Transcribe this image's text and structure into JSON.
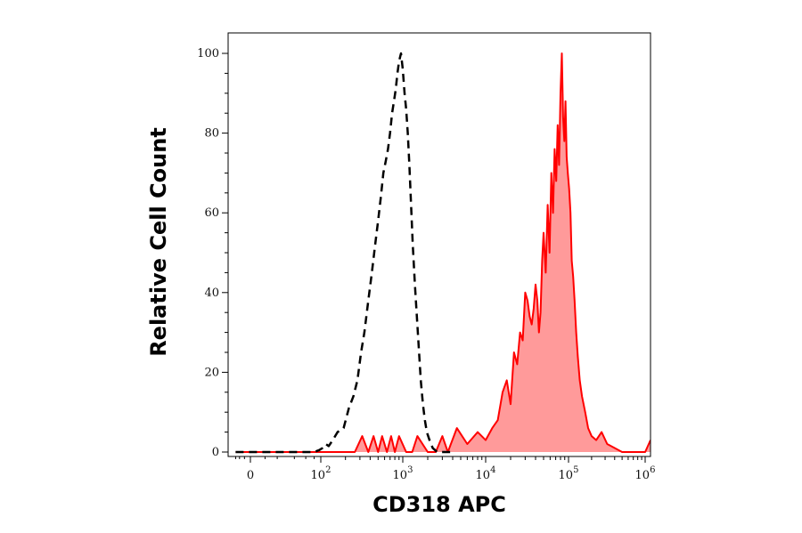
{
  "chart_data": {
    "type": "area",
    "title": "",
    "xlabel": "CD318 APC",
    "ylabel": "Relative Cell Count",
    "x_scale": "biexponential",
    "xlim": [
      -40,
      1100000
    ],
    "ylim": [
      0,
      100
    ],
    "grid": false,
    "legend": "none",
    "y_ticks": [
      {
        "value": 0,
        "label": "0"
      },
      {
        "value": 20,
        "label": "20"
      },
      {
        "value": 40,
        "label": "40"
      },
      {
        "value": 60,
        "label": "60"
      },
      {
        "value": 80,
        "label": "80"
      },
      {
        "value": 100,
        "label": "100"
      }
    ],
    "x_ticks": [
      {
        "value": 0,
        "base": "0",
        "exp": ""
      },
      {
        "value": 100,
        "base": "10",
        "exp": "2"
      },
      {
        "value": 1000,
        "base": "10",
        "exp": "3"
      },
      {
        "value": 10000,
        "base": "10",
        "exp": "4"
      },
      {
        "value": 100000,
        "base": "10",
        "exp": "5"
      },
      {
        "value": 1000000,
        "base": "10",
        "exp": "6"
      }
    ],
    "series": [
      {
        "style": "dashed",
        "color": "#000000",
        "x": [
          -30,
          0,
          30,
          60,
          80,
          95,
          105,
          115,
          125,
          140,
          160,
          190,
          220,
          250,
          280,
          310,
          340,
          380,
          420,
          460,
          500,
          540,
          580,
          620,
          660,
          700,
          740,
          780,
          820,
          860,
          900,
          950,
          1000,
          1050,
          1100,
          1150,
          1200,
          1260,
          1320,
          1400,
          1480,
          1560,
          1650,
          1750,
          1850,
          1950,
          2100,
          2300,
          2600,
          3000,
          4000
        ],
        "y": [
          0,
          0,
          0,
          0,
          0,
          0.5,
          1,
          2,
          1.5,
          3,
          5,
          6,
          11,
          14,
          18,
          25,
          30,
          38,
          45,
          52,
          58,
          64,
          70,
          73,
          76,
          80,
          85,
          88,
          91,
          95,
          98,
          100,
          96,
          90,
          86,
          80,
          72,
          62,
          52,
          42,
          34,
          26,
          18,
          12,
          8,
          5,
          3,
          1,
          0,
          0,
          0
        ]
      },
      {
        "style": "filled",
        "color": "#ff0000",
        "fill": "#ff9a9a",
        "x": [
          -30,
          100,
          200,
          260,
          320,
          380,
          440,
          500,
          560,
          640,
          720,
          800,
          900,
          1100,
          1300,
          1500,
          2000,
          2500,
          3000,
          3500,
          4500,
          6000,
          8000,
          10000,
          12000,
          14000,
          16000,
          18000,
          20000,
          22000,
          24000,
          26000,
          28000,
          30000,
          32000,
          34000,
          36000,
          38000,
          40000,
          42000,
          44000,
          46000,
          48000,
          50000,
          53000,
          56000,
          59000,
          62000,
          65000,
          68000,
          71000,
          74000,
          77000,
          80000,
          83000,
          86000,
          89000,
          92000,
          95000,
          98000,
          102000,
          106000,
          110000,
          115000,
          120000,
          126000,
          132000,
          140000,
          150000,
          165000,
          180000,
          200000,
          230000,
          270000,
          320000,
          400000,
          500000,
          650000,
          800000,
          1000000,
          1100000
        ],
        "y": [
          0,
          0,
          0,
          0,
          4,
          0,
          4,
          0,
          4,
          0,
          4,
          0,
          4,
          0,
          0,
          4,
          0,
          0,
          4,
          0,
          6,
          2,
          5,
          3,
          6,
          8,
          15,
          18,
          12,
          25,
          22,
          30,
          28,
          40,
          38,
          34,
          32,
          36,
          42,
          38,
          30,
          35,
          48,
          55,
          45,
          62,
          50,
          70,
          60,
          76,
          68,
          82,
          72,
          90,
          100,
          84,
          78,
          88,
          74,
          70,
          66,
          60,
          48,
          44,
          38,
          30,
          24,
          18,
          14,
          10,
          6,
          4,
          3,
          5,
          2,
          1,
          0,
          0,
          0,
          0,
          3
        ]
      }
    ]
  }
}
